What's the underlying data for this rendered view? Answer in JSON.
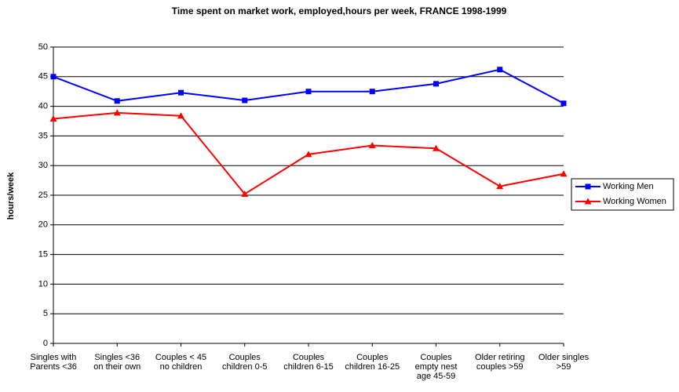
{
  "chart_data": {
    "type": "line",
    "title": "Time spent on market work, employed,hours per week, FRANCE 1998-1999",
    "y_label": "hours/week",
    "categories": [
      "Singles with\nParents <36",
      "Singles  <36\non their own",
      "Couples < 45\nno children",
      "Couples\nchildren 0-5",
      "Couples\nchildren 6-15",
      "Couples\nchildren 16-25",
      "Couples\nempty nest\nage 45-59",
      "Older retiring\ncouples >59",
      "Older singles\n>59"
    ],
    "series": [
      {
        "name": "Working Men",
        "color": "#0000ff",
        "marker": "square",
        "values": [
          45.0,
          40.9,
          42.3,
          41.0,
          42.5,
          42.5,
          43.8,
          46.2,
          40.5
        ]
      },
      {
        "name": "Working Women",
        "color": "#ff0000",
        "marker": "triangle",
        "values": [
          37.9,
          38.9,
          38.4,
          25.2,
          31.9,
          33.4,
          32.9,
          26.5,
          28.6
        ]
      }
    ],
    "ylim": [
      0,
      50
    ],
    "yticks": [
      0,
      5,
      10,
      15,
      20,
      25,
      30,
      35,
      40,
      45,
      50
    ],
    "grid": true,
    "legend": "right"
  }
}
